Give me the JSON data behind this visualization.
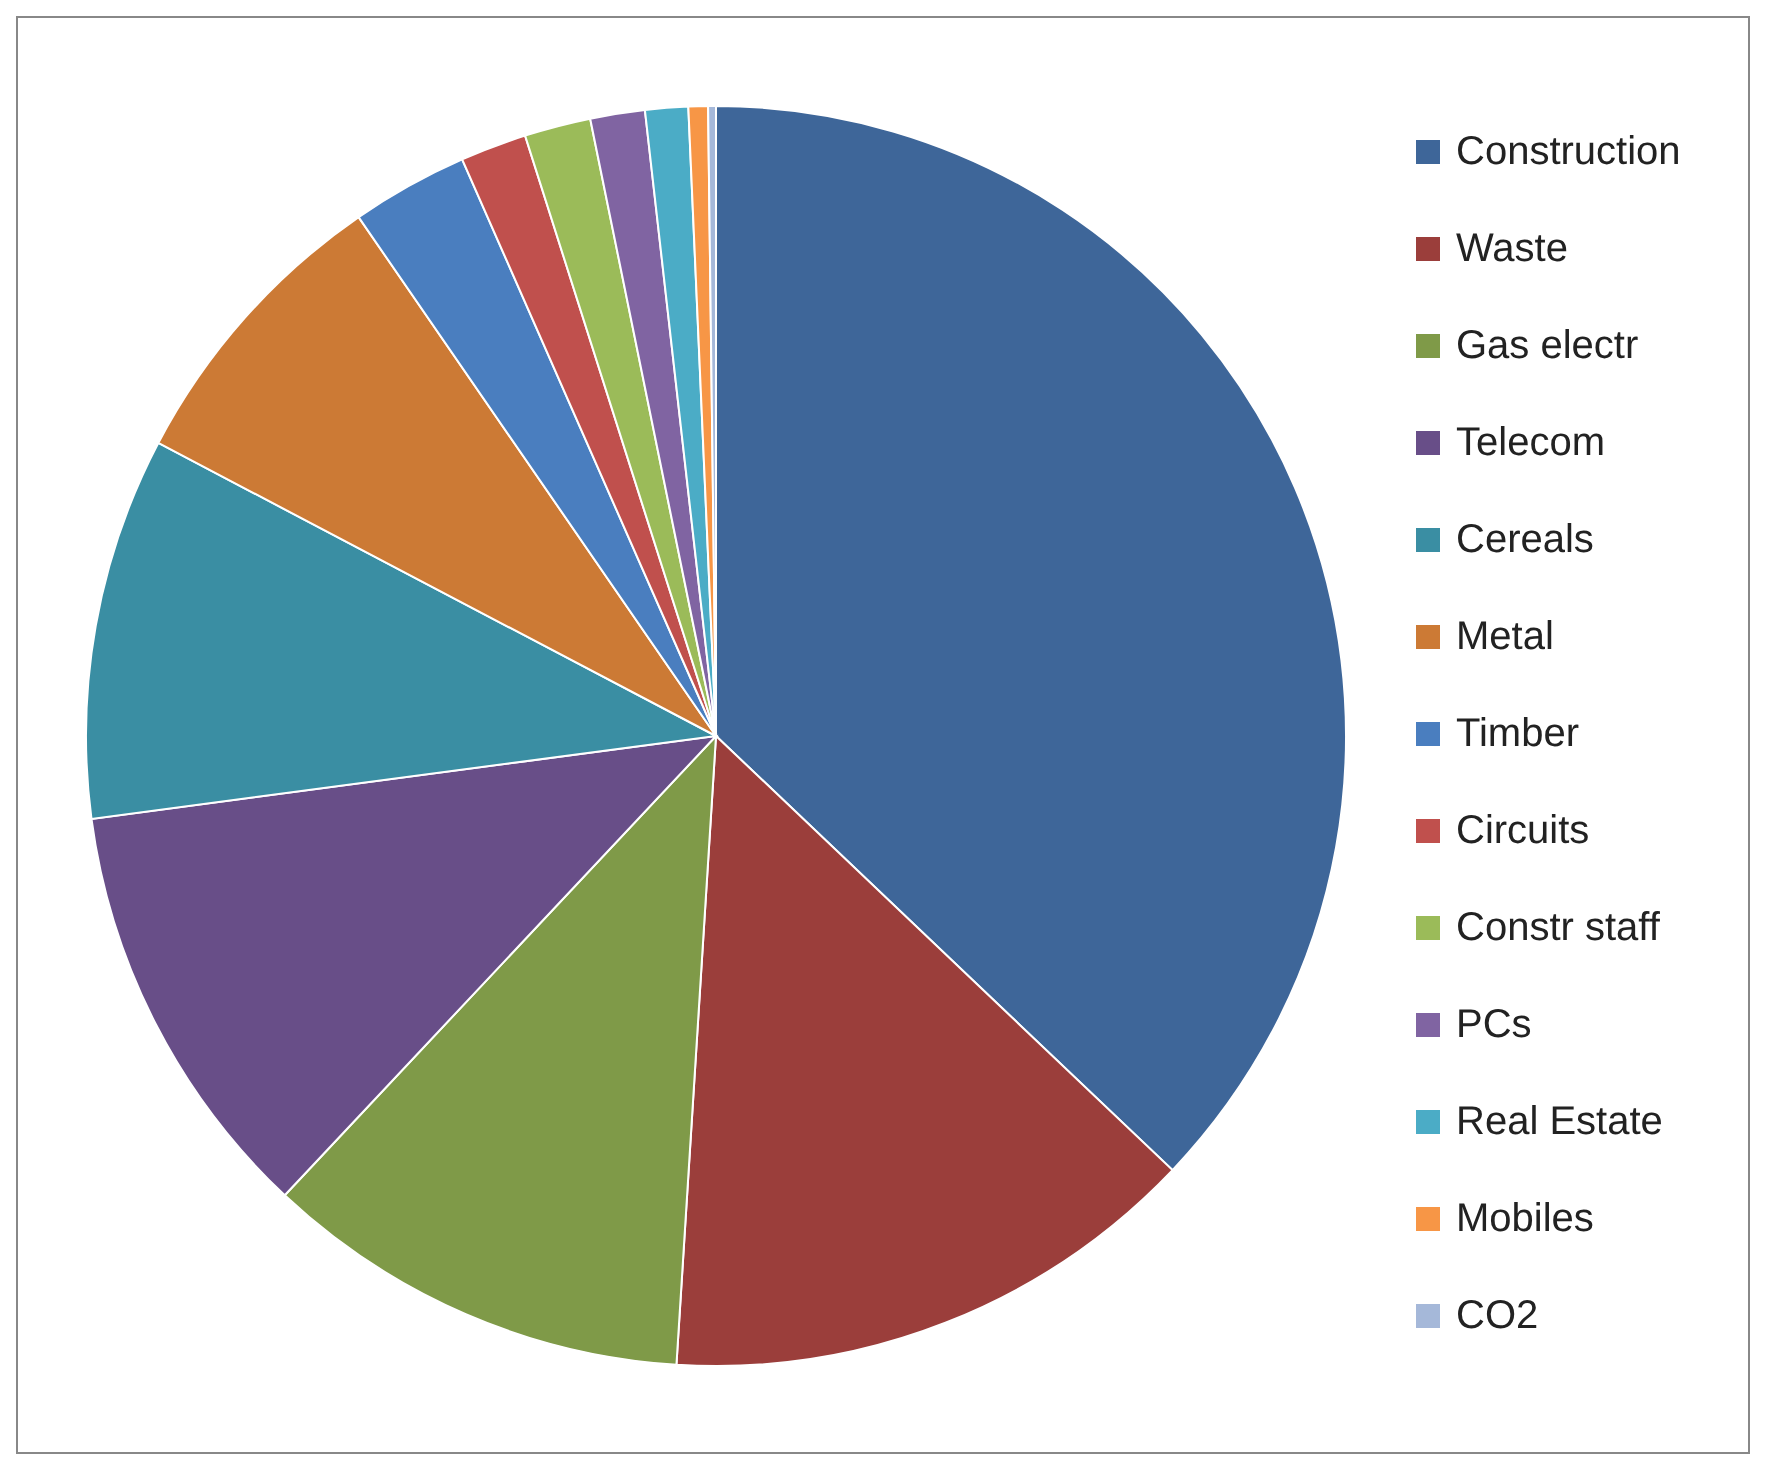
{
  "chart_data": {
    "type": "pie",
    "categories": [
      "Construction",
      "Waste",
      "Gas electr",
      "Telecom",
      "Cereals",
      "Metal",
      "Timber",
      "Circuits",
      "Constr staff",
      "PCs",
      "Real Estate",
      "Mobiles",
      "CO2"
    ],
    "values": [
      37.1,
      13.9,
      11.0,
      10.9,
      9.8,
      7.7,
      3.0,
      1.7,
      1.7,
      1.4,
      1.1,
      0.5,
      0.2
    ],
    "colors": [
      "#3e6699",
      "#9b3e3b",
      "#7f9a48",
      "#684e88",
      "#3a8ea3",
      "#cc7a35",
      "#4a7ebf",
      "#c0504d",
      "#9bbb59",
      "#8064a2",
      "#4bacc6",
      "#f79646",
      "#a5b8d9"
    ],
    "legend": "right"
  }
}
